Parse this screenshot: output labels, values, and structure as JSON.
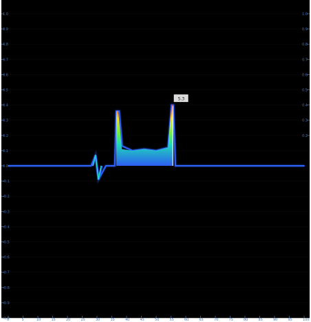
{
  "chart_data": {
    "type": "line",
    "title": "",
    "xlabel": "",
    "ylabel": "",
    "grid": false,
    "legend": "none",
    "xlim": [
      0,
      100
    ],
    "ylim": [
      -100,
      100
    ],
    "colors": {
      "background": "#000000",
      "low": "#2f63ff",
      "mid": "#20e4c1",
      "mid2": "#7dfc42",
      "high": "#ffe238",
      "peak": "#ff2d12"
    },
    "series": [
      {
        "values": [
          {
            "x": 0,
            "y": 0
          },
          {
            "x": 10,
            "y": 0
          },
          {
            "x": 20,
            "y": 0
          },
          {
            "x": 28,
            "y": 0
          },
          {
            "x": 29.5,
            "y": 7
          },
          {
            "x": 30.5,
            "y": -9
          },
          {
            "x": 33,
            "y": 0
          },
          {
            "x": 36,
            "y": 0
          },
          {
            "x": 36.5,
            "y": 36
          },
          {
            "x": 37.5,
            "y": 36
          },
          {
            "x": 38.5,
            "y": 13
          },
          {
            "x": 42,
            "y": 10
          },
          {
            "x": 46,
            "y": 11
          },
          {
            "x": 50,
            "y": 10
          },
          {
            "x": 54,
            "y": 12
          },
          {
            "x": 55.2,
            "y": 40
          },
          {
            "x": 55.8,
            "y": 40
          },
          {
            "x": 56.5,
            "y": 0
          },
          {
            "x": 60,
            "y": 0
          },
          {
            "x": 70,
            "y": 0
          },
          {
            "x": 80,
            "y": 0
          },
          {
            "x": 90,
            "y": 0
          },
          {
            "x": 100,
            "y": 0
          }
        ]
      }
    ],
    "annotations": [
      {
        "x": 57,
        "y": 44,
        "text": "5.3"
      }
    ],
    "y_ticks_left": [
      {
        "value": 100,
        "label": "1.0"
      },
      {
        "value": 90,
        "label": "0.9"
      },
      {
        "value": 80,
        "label": "0.8"
      },
      {
        "value": 70,
        "label": "0.7"
      },
      {
        "value": 60,
        "label": "0.6"
      },
      {
        "value": 50,
        "label": "0.5"
      },
      {
        "value": 40,
        "label": "0.4"
      },
      {
        "value": 30,
        "label": "0.3"
      },
      {
        "value": 20,
        "label": "0.2"
      },
      {
        "value": 10,
        "label": "0.1"
      },
      {
        "value": 0,
        "label": "0.0"
      },
      {
        "value": -10,
        "label": "-0.1"
      },
      {
        "value": -20,
        "label": "-0.2"
      },
      {
        "value": -30,
        "label": "-0.3"
      },
      {
        "value": -40,
        "label": "-0.4"
      },
      {
        "value": -50,
        "label": "-0.5"
      },
      {
        "value": -60,
        "label": "-0.6"
      },
      {
        "value": -70,
        "label": "-0.7"
      },
      {
        "value": -80,
        "label": "-0.8"
      },
      {
        "value": -90,
        "label": "-0.9"
      },
      {
        "value": -100,
        "label": "-1.0"
      }
    ],
    "y_ticks_right": [
      {
        "value": 100,
        "label": "1.0"
      },
      {
        "value": 90,
        "label": "0.9"
      },
      {
        "value": 80,
        "label": "0.8"
      },
      {
        "value": 70,
        "label": "0.7"
      },
      {
        "value": 60,
        "label": "0.6"
      },
      {
        "value": 50,
        "label": "0.5"
      },
      {
        "value": 40,
        "label": "0.4"
      },
      {
        "value": 30,
        "label": "0.3"
      },
      {
        "value": 20,
        "label": "0.2"
      }
    ],
    "x_ticks": [
      {
        "value": 0,
        "label": "0"
      },
      {
        "value": 5,
        "label": "5"
      },
      {
        "value": 10,
        "label": "10"
      },
      {
        "value": 15,
        "label": "15"
      },
      {
        "value": 20,
        "label": "20"
      },
      {
        "value": 25,
        "label": "25"
      },
      {
        "value": 30,
        "label": "30"
      },
      {
        "value": 35,
        "label": "35"
      },
      {
        "value": 40,
        "label": "40"
      },
      {
        "value": 45,
        "label": "45"
      },
      {
        "value": 50,
        "label": "50"
      },
      {
        "value": 55,
        "label": "55"
      },
      {
        "value": 60,
        "label": "60"
      },
      {
        "value": 65,
        "label": "65"
      },
      {
        "value": 70,
        "label": "70"
      },
      {
        "value": 75,
        "label": "75"
      },
      {
        "value": 80,
        "label": "80"
      },
      {
        "value": 85,
        "label": "85"
      },
      {
        "value": 90,
        "label": "90"
      },
      {
        "value": 95,
        "label": "95"
      },
      {
        "value": 100,
        "label": "100"
      }
    ]
  }
}
